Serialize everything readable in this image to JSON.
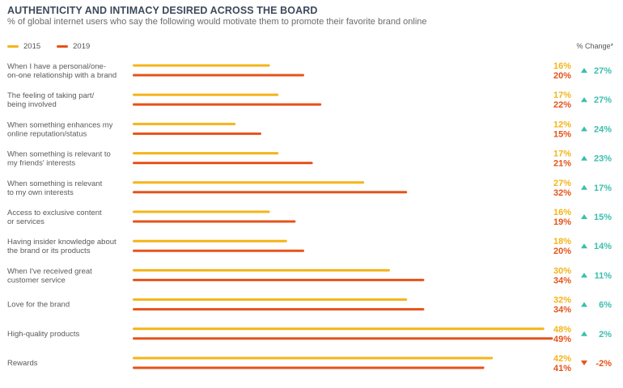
{
  "header": {
    "title": "AUTHENTICITY AND INTIMACY DESIRED ACROSS THE BOARD",
    "subtitle": "% of global internet users who say the following would motivate them to promote their favorite brand online",
    "change_header": "% Change*"
  },
  "colors": {
    "series_2015": "#f5b418",
    "series_2019": "#e5531a",
    "change_up": "#3bbfae",
    "change_down": "#e5531a",
    "text": "#5a5a5a"
  },
  "chart_data": {
    "type": "bar",
    "orientation": "horizontal",
    "title": "AUTHENTICITY AND INTIMACY DESIRED ACROSS THE BOARD",
    "subtitle": "% of global internet users who say the following would motivate them to promote their favorite brand online",
    "legend_position": "top-left",
    "xlim": [
      0,
      49
    ],
    "grid": false,
    "categories": [
      [
        "When I have a personal/one-",
        "on-one relationship with a brand"
      ],
      [
        "The feeling of taking part/",
        "being involved"
      ],
      [
        "When something enhances my",
        "online reputation/status"
      ],
      [
        "When something is relevant to",
        "my friends' interests"
      ],
      [
        "When something is relevant",
        "to my own interests"
      ],
      [
        "Access to exclusive content",
        "or services"
      ],
      [
        "Having insider knowledge about",
        "the brand or its products"
      ],
      [
        "When I've received great",
        "customer service"
      ],
      [
        "Love for the brand"
      ],
      [
        "High-quality products"
      ],
      [
        "Rewards"
      ]
    ],
    "series": [
      {
        "name": "2015",
        "values": [
          16,
          17,
          12,
          17,
          27,
          16,
          18,
          30,
          32,
          48,
          42
        ]
      },
      {
        "name": "2019",
        "values": [
          20,
          22,
          15,
          21,
          32,
          19,
          20,
          34,
          34,
          49,
          41
        ]
      }
    ],
    "value_labels": {
      "2015": [
        "16%",
        "17%",
        "12%",
        "17%",
        "27%",
        "16%",
        "18%",
        "30%",
        "32%",
        "48%",
        "42%"
      ],
      "2019": [
        "20%",
        "22%",
        "15%",
        "21%",
        "32%",
        "19%",
        "20%",
        "34%",
        "34%",
        "49%",
        "41%"
      ]
    },
    "change": {
      "header": "% Change*",
      "values": [
        27,
        27,
        24,
        23,
        17,
        15,
        14,
        11,
        6,
        2,
        -2
      ],
      "labels": [
        "27%",
        "27%",
        "24%",
        "23%",
        "17%",
        "15%",
        "14%",
        "11%",
        "6%",
        "2%",
        "-2%"
      ]
    }
  }
}
